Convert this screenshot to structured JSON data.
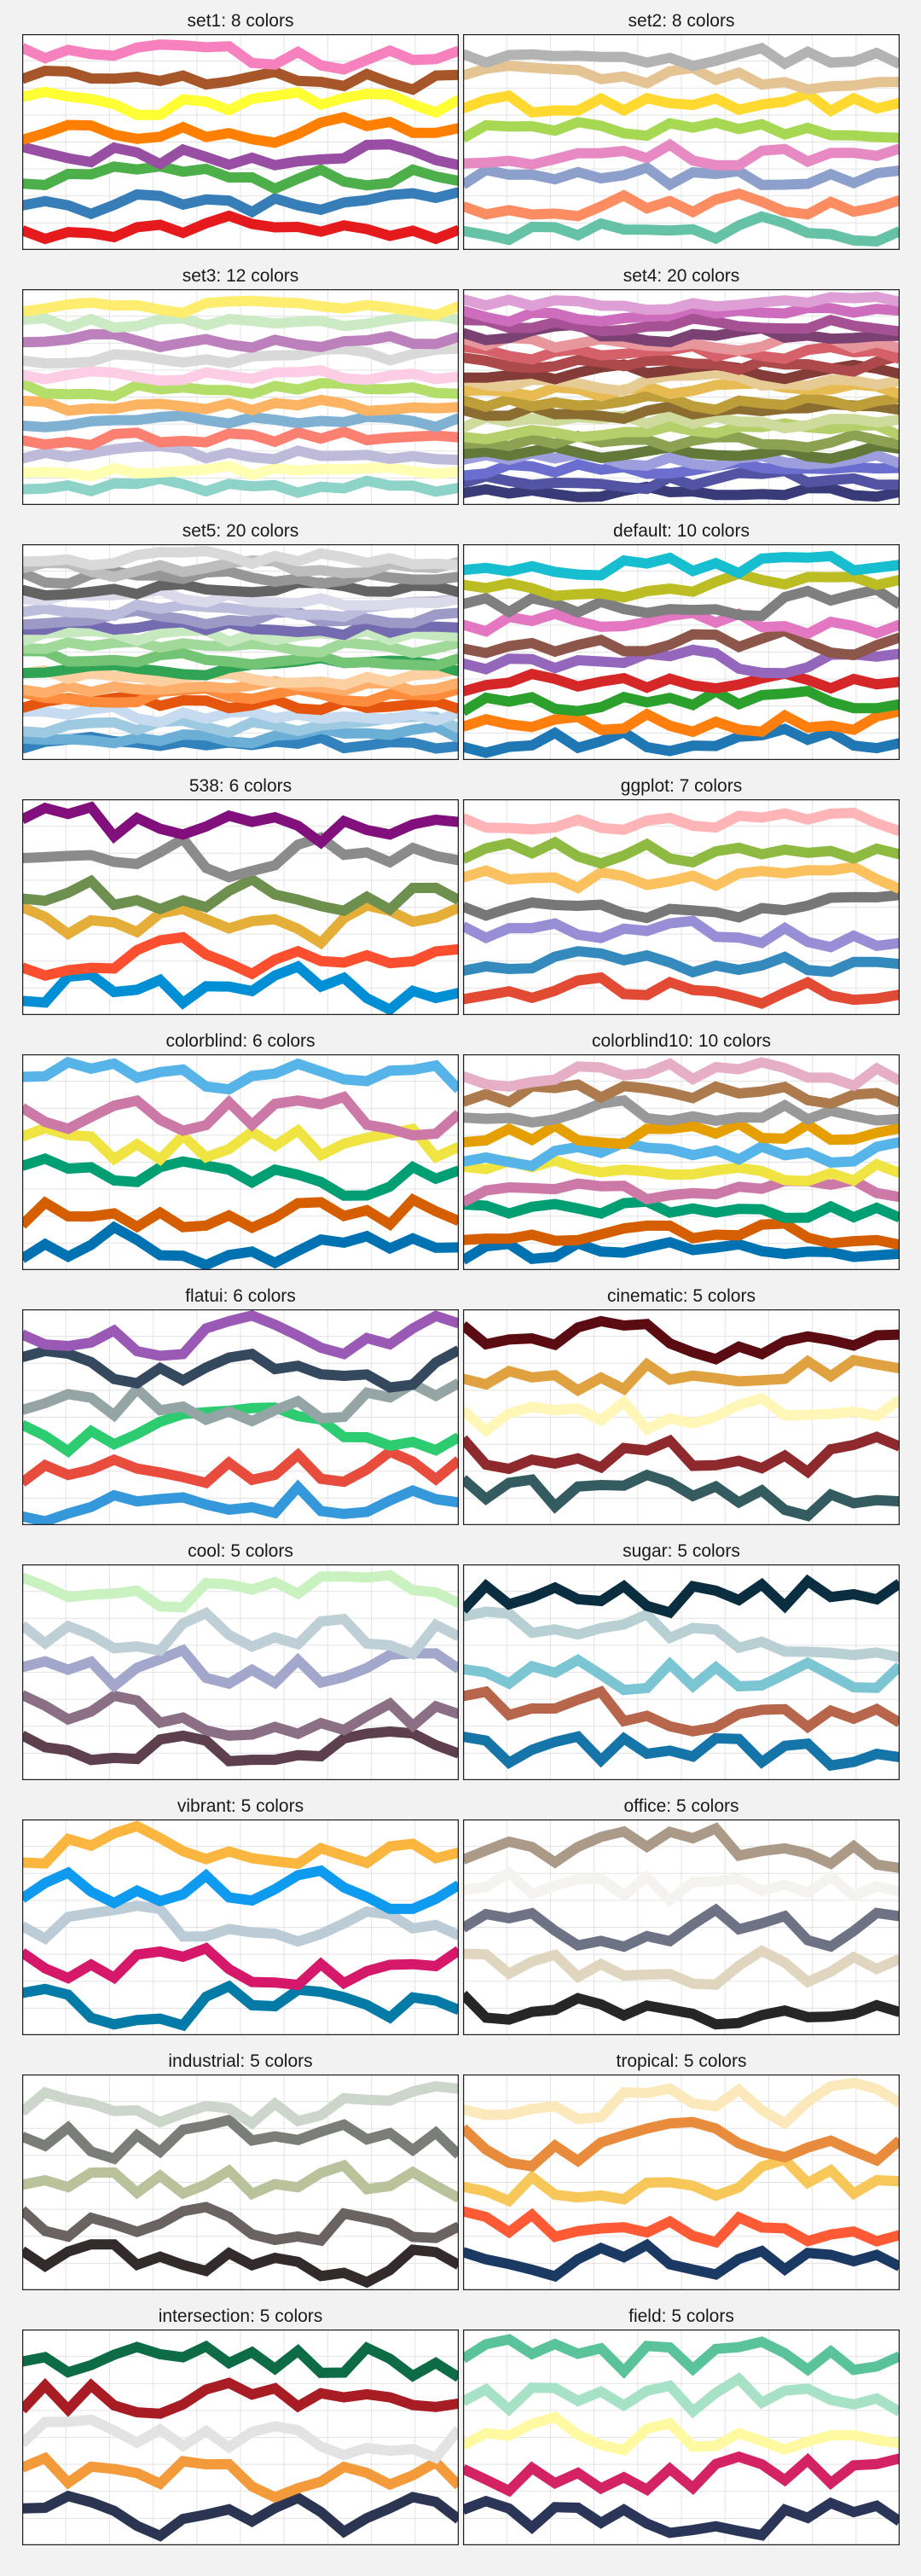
{
  "page": {
    "background": "#f2f2f2"
  },
  "chart_data": [
    {
      "type": "line",
      "title": "set1: 8 colors",
      "colors": [
        "#e41a1c",
        "#377eb8",
        "#4daf4a",
        "#984ea3",
        "#ff7f00",
        "#ffff33",
        "#a65628",
        "#f781bf"
      ]
    },
    {
      "type": "line",
      "title": "set2: 8 colors",
      "colors": [
        "#66c2a5",
        "#fc8d62",
        "#8da0cb",
        "#e78ac3",
        "#a6d854",
        "#ffd92f",
        "#e5c494",
        "#b3b3b3"
      ]
    },
    {
      "type": "line",
      "title": "set3: 12 colors",
      "colors": [
        "#8dd3c7",
        "#ffffb3",
        "#bebada",
        "#fb8072",
        "#80b1d3",
        "#fdb462",
        "#b3de69",
        "#fccde5",
        "#d9d9d9",
        "#bc80bd",
        "#ccebc5",
        "#ffed6f"
      ]
    },
    {
      "type": "line",
      "title": "set4: 20 colors",
      "colors": [
        "#393b79",
        "#5254a3",
        "#6b6ecf",
        "#9c9ede",
        "#637939",
        "#8ca252",
        "#b5cf6b",
        "#cedb9c",
        "#8c6d31",
        "#bd9e39",
        "#e7ba52",
        "#e7cb94",
        "#843c39",
        "#ad494a",
        "#d6616b",
        "#e7969c",
        "#7b4173",
        "#a55194",
        "#ce6dbd",
        "#de9ed6"
      ]
    },
    {
      "type": "line",
      "title": "set5: 20 colors",
      "colors": [
        "#3182bd",
        "#6baed6",
        "#9ecae1",
        "#c6dbef",
        "#e6550d",
        "#fd8d3c",
        "#fdae6b",
        "#fdd0a2",
        "#31a354",
        "#74c476",
        "#a1d99b",
        "#c7e9c0",
        "#756bb1",
        "#9e9ac8",
        "#bcbddc",
        "#dadaeb",
        "#636363",
        "#969696",
        "#bdbdbd",
        "#d9d9d9"
      ]
    },
    {
      "type": "line",
      "title": "default: 10 colors",
      "colors": [
        "#1f77b4",
        "#ff7f0e",
        "#2ca02c",
        "#d62728",
        "#9467bd",
        "#8c564b",
        "#e377c2",
        "#7f7f7f",
        "#bcbd22",
        "#17becf"
      ]
    },
    {
      "type": "line",
      "title": "538: 6 colors",
      "colors": [
        "#008fd5",
        "#fc4f30",
        "#e5ae38",
        "#6d904f",
        "#8b8b8b",
        "#810f7c"
      ]
    },
    {
      "type": "line",
      "title": "ggplot: 7 colors",
      "colors": [
        "#E24A33",
        "#348ABD",
        "#988ED5",
        "#777777",
        "#FBC15E",
        "#8EBA42",
        "#FFB5B8"
      ]
    },
    {
      "type": "line",
      "title": "colorblind: 6 colors",
      "colors": [
        "#0072B2",
        "#D55E00",
        "#009E73",
        "#F0E442",
        "#CC79A7",
        "#56B4E9"
      ]
    },
    {
      "type": "line",
      "title": "colorblind10: 10 colors",
      "colors": [
        "#0072B2",
        "#D55E00",
        "#009E73",
        "#CC79A7",
        "#F0E442",
        "#56B4E9",
        "#E69F00",
        "#999999",
        "#AD7A4E",
        "#E6AFC6"
      ]
    },
    {
      "type": "line",
      "title": "flatui: 6 colors",
      "colors": [
        "#3498db",
        "#e74c3c",
        "#2ecc71",
        "#95a5a6",
        "#34495e",
        "#9b59b6"
      ]
    },
    {
      "type": "line",
      "title": "cinematic: 5 colors",
      "colors": [
        "#345B5F",
        "#8E2A2E",
        "#FFF6B8",
        "#E0A140",
        "#5B0C13"
      ]
    },
    {
      "type": "line",
      "title": "cool: 5 colors",
      "colors": [
        "#5E3F4D",
        "#8B6F85",
        "#A3A7CC",
        "#BECFD6",
        "#C9F2C0"
      ]
    },
    {
      "type": "line",
      "title": "sugar: 5 colors",
      "colors": [
        "#1574A8",
        "#B7654B",
        "#7CC6D4",
        "#B8D0D3",
        "#0A2E40"
      ]
    },
    {
      "type": "line",
      "title": "vibrant: 5 colors",
      "colors": [
        "#047AA6",
        "#D6186A",
        "#BCCCD6",
        "#0E9AEE",
        "#FAB63F"
      ]
    },
    {
      "type": "line",
      "title": "office: 5 colors",
      "colors": [
        "#262626",
        "#E0D6BF",
        "#6D7285",
        "#F5F3EF",
        "#AC9A88"
      ]
    },
    {
      "type": "line",
      "title": "industrial: 5 colors",
      "colors": [
        "#332B2B",
        "#6B6262",
        "#B9C29A",
        "#7B7E78",
        "#CCD6CB"
      ]
    },
    {
      "type": "line",
      "title": "tropical: 5 colors",
      "colors": [
        "#1A3A64",
        "#FF5A36",
        "#F7C859",
        "#E88B3D",
        "#FCE9BB"
      ]
    },
    {
      "type": "line",
      "title": "intersection: 5 colors",
      "colors": [
        "#2B3552",
        "#F39A3B",
        "#E3E3E3",
        "#A81C24",
        "#0D6B46"
      ]
    },
    {
      "type": "line",
      "title": "field: 5 colors",
      "colors": [
        "#2A3557",
        "#D42364",
        "#FFF9A1",
        "#A8E2C6",
        "#5BC39C"
      ]
    }
  ]
}
